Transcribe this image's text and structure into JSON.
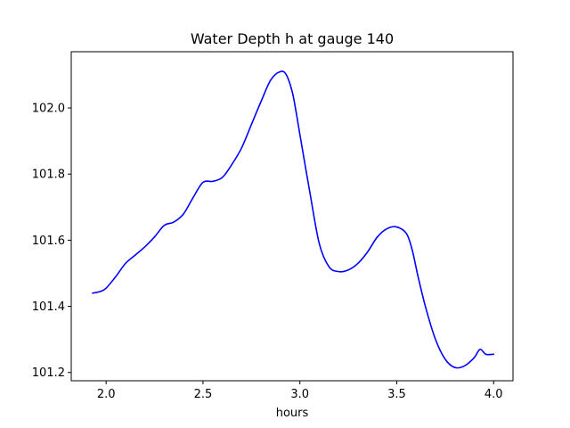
{
  "chart_data": {
    "type": "line",
    "title": "Water Depth h at gauge 140",
    "xlabel": "hours",
    "ylabel": "",
    "xlim": [
      1.82,
      4.1
    ],
    "ylim": [
      101.175,
      102.17
    ],
    "grid": false,
    "legend": "none",
    "x_ticks": [
      2.0,
      2.5,
      3.0,
      3.5,
      4.0
    ],
    "x_tick_labels": [
      "2.0",
      "2.5",
      "3.0",
      "3.5",
      "4.0"
    ],
    "y_ticks": [
      101.2,
      101.4,
      101.6,
      101.8,
      102.0
    ],
    "y_tick_labels": [
      "101.2",
      "101.4",
      "101.6",
      "101.8",
      "102.0"
    ],
    "series": [
      {
        "color": "#0000ff",
        "x": [
          1.93,
          1.97,
          2.0,
          2.05,
          2.1,
          2.15,
          2.2,
          2.25,
          2.3,
          2.35,
          2.4,
          2.45,
          2.5,
          2.55,
          2.6,
          2.65,
          2.7,
          2.75,
          2.8,
          2.85,
          2.9,
          2.93,
          2.96,
          2.98,
          3.0,
          3.05,
          3.1,
          3.15,
          3.2,
          3.25,
          3.3,
          3.35,
          3.4,
          3.45,
          3.5,
          3.55,
          3.58,
          3.61,
          3.65,
          3.7,
          3.75,
          3.8,
          3.85,
          3.9,
          3.93,
          3.96,
          4.0
        ],
        "y": [
          101.44,
          101.445,
          101.455,
          101.49,
          101.53,
          101.555,
          101.58,
          101.61,
          101.645,
          101.655,
          101.68,
          101.73,
          101.775,
          101.778,
          101.79,
          101.83,
          101.88,
          101.95,
          102.02,
          102.085,
          102.11,
          102.1,
          102.05,
          101.99,
          101.92,
          101.75,
          101.59,
          101.52,
          101.505,
          101.51,
          101.53,
          101.565,
          101.61,
          101.635,
          101.64,
          101.62,
          101.57,
          101.49,
          101.395,
          101.3,
          101.24,
          101.215,
          101.22,
          101.245,
          101.27,
          101.255,
          101.255
        ]
      }
    ]
  }
}
